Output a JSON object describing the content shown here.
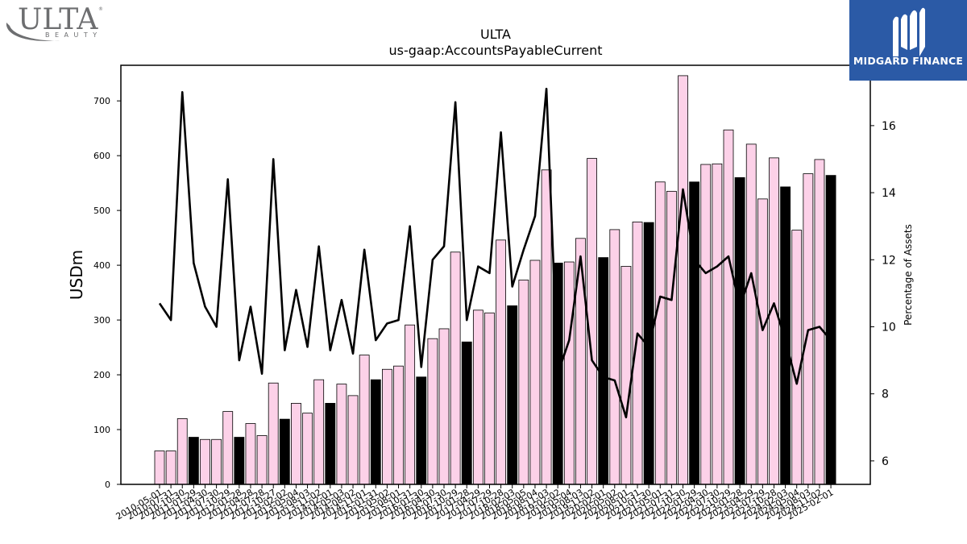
{
  "logos": {
    "ulta_word": "ULTA",
    "ulta_sub": "BEAUTY",
    "midgard": "MIDGARD FINANCE"
  },
  "chart_data": {
    "type": "bar+line",
    "title": "ULTA",
    "subtitle": "us-gaap:AccountsPayableCurrent",
    "ylabel": "USDm",
    "y2label": "Percentage of Assets",
    "ylim": [
      0,
      765
    ],
    "y2lim": [
      5.3,
      17.8
    ],
    "yticks": [
      0,
      100,
      200,
      300,
      400,
      500,
      600,
      700
    ],
    "y2ticks": [
      6,
      8,
      10,
      12,
      14,
      16
    ],
    "categories": [
      "2010-05-01",
      "2010-07-31",
      "2010-10-30",
      "2011-01-29",
      "2011-04-30",
      "2011-07-30",
      "2011-10-29",
      "2012-01-28",
      "2012-04-28",
      "2012-07-28",
      "2012-10-27",
      "2013-02-02",
      "2013-05-04",
      "2013-08-03",
      "2013-11-02",
      "2014-02-01",
      "2014-05-03",
      "2014-08-02",
      "2014-11-01",
      "2015-01-31",
      "2015-05-02",
      "2015-08-01",
      "2015-10-31",
      "2016-01-30",
      "2016-04-30",
      "2016-07-30",
      "2016-10-29",
      "2017-01-28",
      "2017-04-29",
      "2017-07-29",
      "2017-10-28",
      "2018-02-03",
      "2018-05-05",
      "2018-08-04",
      "2018-11-03",
      "2019-02-02",
      "2019-05-04",
      "2019-08-03",
      "2019-11-02",
      "2020-02-01",
      "2020-05-02",
      "2020-08-01",
      "2020-10-31",
      "2021-01-30",
      "2021-05-01",
      "2021-07-31",
      "2021-10-30",
      "2022-01-29",
      "2022-04-30",
      "2022-07-30",
      "2022-10-29",
      "2023-01-28",
      "2023-04-29",
      "2023-07-29",
      "2023-10-28",
      "2024-02-03",
      "2024-05-04",
      "2024-08-03",
      "2024-11-02",
      "2025-02-01"
    ],
    "bar_values": [
      61,
      61,
      120,
      86,
      82,
      82,
      133,
      86,
      111,
      89,
      185,
      119,
      148,
      130,
      191,
      148,
      183,
      162,
      236,
      191,
      210,
      216,
      291,
      196,
      266,
      284,
      424,
      260,
      318,
      313,
      446,
      326,
      373,
      409,
      574,
      404,
      406,
      449,
      595,
      414,
      465,
      398,
      479,
      478,
      552,
      535,
      746,
      552,
      584,
      585,
      647,
      560,
      621,
      521,
      596,
      543,
      464,
      567,
      593,
      564
    ],
    "bar_highlight": [
      false,
      false,
      false,
      true,
      false,
      false,
      false,
      true,
      false,
      false,
      false,
      true,
      false,
      false,
      false,
      true,
      false,
      false,
      false,
      true,
      false,
      false,
      false,
      true,
      false,
      false,
      false,
      true,
      false,
      false,
      false,
      true,
      false,
      false,
      false,
      true,
      false,
      false,
      false,
      true,
      false,
      false,
      false,
      true,
      false,
      false,
      false,
      true,
      false,
      false,
      false,
      true,
      false,
      false,
      false,
      true,
      false,
      false,
      false,
      true
    ],
    "line_values": [
      10.7,
      10.2,
      17.0,
      11.9,
      10.6,
      10.0,
      14.4,
      9.0,
      10.6,
      8.6,
      15.0,
      9.3,
      11.1,
      9.4,
      12.4,
      9.3,
      10.8,
      9.2,
      12.3,
      9.6,
      10.1,
      10.2,
      13.0,
      8.8,
      12.0,
      12.4,
      16.7,
      10.2,
      11.8,
      11.6,
      15.8,
      11.2,
      12.3,
      13.3,
      17.1,
      8.6,
      9.6,
      12.1,
      9.0,
      8.5,
      8.4,
      7.3,
      9.8,
      9.4,
      10.9,
      10.8,
      14.1,
      12.0,
      11.6,
      11.8,
      12.1,
      10.6,
      11.6,
      9.9,
      10.7,
      9.6,
      8.3,
      9.9,
      10.0,
      9.6
    ],
    "colors": {
      "bar": "#fcd1e8",
      "bar_highlight": "#000000",
      "bar_edge": "#000000",
      "line": "#000000"
    }
  }
}
